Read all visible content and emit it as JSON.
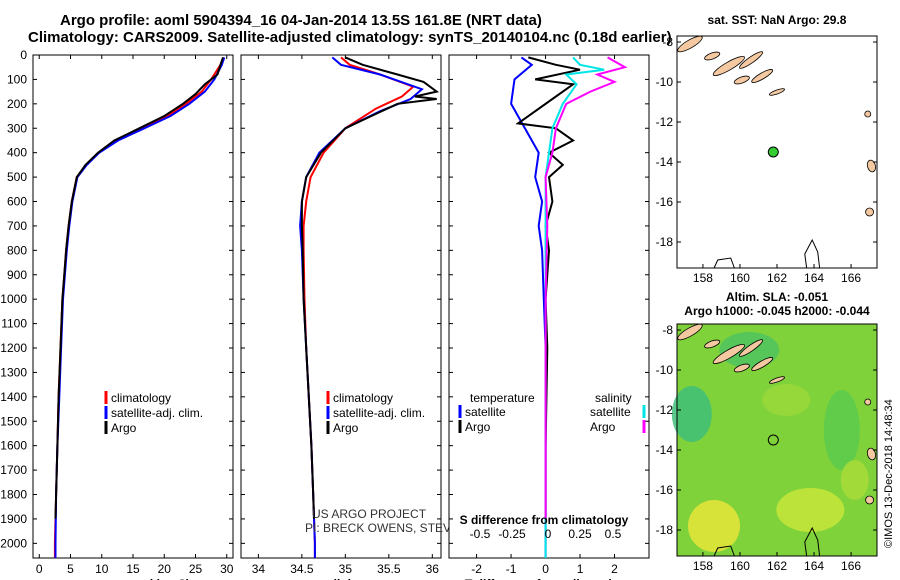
{
  "header": {
    "line1": "Argo profile: aoml 5904394_16 04-Jan-2014 13.5S 161.8E (NRT data)",
    "line2": "Climatology: CARS2009. Satellite-adjusted climatology: synTS_20140104.nc (0.18d earlier)"
  },
  "colors": {
    "climatology": "#ff0000",
    "satellite": "#0000ff",
    "argo": "#000000",
    "sat_salinity": "#00e5e5",
    "argo_salinity": "#ff00ff",
    "map_land": "#f4c8a0",
    "dot": "#33cc33"
  },
  "chart_data": [
    {
      "type": "line",
      "name": "temperature-profile",
      "xlabel": "temperature (deg C)",
      "ylabel": "depth",
      "xlim": [
        -1,
        31
      ],
      "ylim": [
        2060,
        0
      ],
      "xticks": [
        0,
        5,
        10,
        15,
        20,
        25,
        30
      ],
      "yticks": [
        0,
        100,
        200,
        300,
        400,
        500,
        600,
        700,
        800,
        900,
        1000,
        1100,
        1200,
        1300,
        1400,
        1500,
        1600,
        1700,
        1800,
        1900,
        2000
      ],
      "series": [
        {
          "name": "climatology",
          "color": "#ff0000",
          "points": [
            [
              29.5,
              10
            ],
            [
              29.0,
              40
            ],
            [
              27.5,
              100
            ],
            [
              26.0,
              150
            ],
            [
              23.5,
              200
            ],
            [
              20.5,
              250
            ],
            [
              16.5,
              300
            ],
            [
              12.5,
              350
            ],
            [
              9.5,
              400
            ],
            [
              7.5,
              450
            ],
            [
              6.0,
              500
            ],
            [
              5.2,
              600
            ],
            [
              4.7,
              700
            ],
            [
              4.3,
              800
            ],
            [
              4.0,
              900
            ],
            [
              3.7,
              1000
            ],
            [
              3.4,
              1200
            ],
            [
              3.1,
              1400
            ],
            [
              2.9,
              1600
            ],
            [
              2.7,
              1800
            ],
            [
              2.5,
              2000
            ],
            [
              2.5,
              2060
            ]
          ]
        },
        {
          "name": "satellite-adj. clim.",
          "color": "#0000ff",
          "points": [
            [
              29.6,
              10
            ],
            [
              29.2,
              40
            ],
            [
              28.0,
              100
            ],
            [
              26.5,
              150
            ],
            [
              24.0,
              200
            ],
            [
              21.0,
              250
            ],
            [
              16.8,
              300
            ],
            [
              12.6,
              350
            ],
            [
              9.6,
              400
            ],
            [
              7.6,
              450
            ],
            [
              6.1,
              500
            ],
            [
              5.3,
              600
            ],
            [
              4.8,
              700
            ],
            [
              4.4,
              800
            ],
            [
              4.1,
              900
            ],
            [
              3.8,
              1000
            ],
            [
              3.5,
              1200
            ],
            [
              3.2,
              1400
            ],
            [
              2.9,
              1600
            ],
            [
              2.7,
              1800
            ],
            [
              2.6,
              2000
            ],
            [
              2.6,
              2060
            ]
          ]
        },
        {
          "name": "Argo",
          "color": "#000000",
          "points": [
            [
              29.4,
              10
            ],
            [
              29.0,
              40
            ],
            [
              28.5,
              80
            ],
            [
              26.5,
              120
            ],
            [
              25.0,
              160
            ],
            [
              23.0,
              200
            ],
            [
              20.0,
              250
            ],
            [
              16.0,
              300
            ],
            [
              12.0,
              350
            ],
            [
              9.4,
              400
            ],
            [
              7.4,
              450
            ],
            [
              6.0,
              500
            ],
            [
              5.2,
              600
            ],
            [
              4.7,
              700
            ],
            [
              4.3,
              800
            ],
            [
              4.0,
              900
            ],
            [
              3.7,
              1000
            ],
            [
              3.4,
              1200
            ],
            [
              3.1,
              1400
            ],
            [
              2.9,
              1600
            ],
            [
              2.7,
              1800
            ],
            [
              2.6,
              1900
            ]
          ]
        }
      ],
      "legend": [
        "climatology",
        "satellite-adj. clim.",
        "Argo"
      ]
    },
    {
      "type": "line",
      "name": "salinity-profile",
      "xlabel": "salinity",
      "xlim": [
        33.8,
        36.1
      ],
      "ylim": [
        2060,
        0
      ],
      "xticks": [
        34,
        34.5,
        35,
        35.5,
        36
      ],
      "series": [
        {
          "name": "climatology",
          "color": "#ff0000",
          "points": [
            [
              34.95,
              10
            ],
            [
              35.05,
              40
            ],
            [
              35.4,
              80
            ],
            [
              35.78,
              130
            ],
            [
              35.65,
              170
            ],
            [
              35.35,
              220
            ],
            [
              35.0,
              300
            ],
            [
              34.75,
              400
            ],
            [
              34.6,
              500
            ],
            [
              34.55,
              600
            ],
            [
              34.52,
              700
            ],
            [
              34.52,
              800
            ],
            [
              34.53,
              1000
            ],
            [
              34.55,
              1200
            ],
            [
              34.58,
              1400
            ],
            [
              34.61,
              1600
            ],
            [
              34.63,
              1800
            ],
            [
              34.65,
              2000
            ],
            [
              34.65,
              2060
            ]
          ]
        },
        {
          "name": "satellite-adj. clim.",
          "color": "#0000ff",
          "points": [
            [
              34.85,
              10
            ],
            [
              34.95,
              40
            ],
            [
              35.4,
              80
            ],
            [
              35.88,
              140
            ],
            [
              35.75,
              180
            ],
            [
              35.4,
              230
            ],
            [
              35.0,
              300
            ],
            [
              34.7,
              400
            ],
            [
              34.55,
              500
            ],
            [
              34.5,
              600
            ],
            [
              34.48,
              700
            ],
            [
              34.5,
              800
            ],
            [
              34.52,
              1000
            ],
            [
              34.55,
              1200
            ],
            [
              34.58,
              1400
            ],
            [
              34.61,
              1600
            ],
            [
              34.63,
              1800
            ],
            [
              34.65,
              2000
            ],
            [
              34.65,
              2060
            ]
          ]
        },
        {
          "name": "Argo",
          "color": "#000000",
          "points": [
            [
              35.0,
              10
            ],
            [
              35.2,
              40
            ],
            [
              35.6,
              80
            ],
            [
              35.9,
              110
            ],
            [
              36.05,
              150
            ],
            [
              35.8,
              170
            ],
            [
              36.05,
              180
            ],
            [
              35.6,
              200
            ],
            [
              35.3,
              250
            ],
            [
              35.0,
              300
            ],
            [
              34.72,
              400
            ],
            [
              34.55,
              500
            ],
            [
              34.5,
              600
            ],
            [
              34.5,
              700
            ],
            [
              34.51,
              800
            ],
            [
              34.52,
              1000
            ],
            [
              34.55,
              1200
            ],
            [
              34.58,
              1400
            ],
            [
              34.61,
              1600
            ],
            [
              34.63,
              1800
            ],
            [
              34.64,
              1900
            ]
          ]
        }
      ],
      "legend": [
        "climatology",
        "satellite-adj. clim.",
        "Argo"
      ]
    },
    {
      "type": "line",
      "name": "difference-profile",
      "xlabel": "T difference from climatology",
      "xlabel_top": "S difference from climatology",
      "xlim": [
        -2.8,
        3.0
      ],
      "ylim": [
        2060,
        0
      ],
      "xticks": [
        -2,
        -1,
        0,
        1,
        2
      ],
      "sticks": [
        "-0.5",
        "-0.25",
        "0",
        "0.25",
        "0.5"
      ],
      "series": [
        {
          "name": "temperature satellite",
          "color": "#0000ff",
          "points": [
            [
              -0.7,
              10
            ],
            [
              -0.4,
              40
            ],
            [
              -0.9,
              100
            ],
            [
              -1.0,
              200
            ],
            [
              -0.6,
              300
            ],
            [
              -0.2,
              400
            ],
            [
              -0.3,
              500
            ],
            [
              -0.1,
              600
            ],
            [
              -0.2,
              700
            ],
            [
              -0.1,
              800
            ],
            [
              -0.05,
              1000
            ],
            [
              0,
              1200
            ],
            [
              0,
              1600
            ],
            [
              0,
              2060
            ]
          ]
        },
        {
          "name": "temperature Argo",
          "color": "#000000",
          "points": [
            [
              -0.5,
              10
            ],
            [
              0.3,
              40
            ],
            [
              1.0,
              60
            ],
            [
              -0.3,
              100
            ],
            [
              0.8,
              120
            ],
            [
              0.2,
              180
            ],
            [
              -0.8,
              280
            ],
            [
              0.3,
              300
            ],
            [
              0.8,
              350
            ],
            [
              0.1,
              400
            ],
            [
              0.5,
              450
            ],
            [
              0.1,
              500
            ],
            [
              0.2,
              600
            ],
            [
              0.0,
              700
            ],
            [
              0.1,
              800
            ],
            [
              0.0,
              1000
            ],
            [
              0.05,
              1200
            ],
            [
              0.0,
              1600
            ],
            [
              0.0,
              1900
            ]
          ]
        },
        {
          "name": "salinity satellite",
          "color": "#00e5e5",
          "points": [
            [
              0.8,
              10
            ],
            [
              1.0,
              40
            ],
            [
              1.7,
              60
            ],
            [
              0.6,
              80
            ],
            [
              0.9,
              120
            ],
            [
              0.5,
              200
            ],
            [
              0.2,
              300
            ],
            [
              0.1,
              400
            ],
            [
              0.0,
              500
            ],
            [
              0.0,
              700
            ],
            [
              0.0,
              1000
            ],
            [
              0.0,
              2060
            ]
          ]
        },
        {
          "name": "salinity Argo",
          "color": "#ff00ff",
          "points": [
            [
              1.8,
              10
            ],
            [
              2.3,
              50
            ],
            [
              1.5,
              80
            ],
            [
              2.0,
              110
            ],
            [
              1.3,
              150
            ],
            [
              0.6,
              200
            ],
            [
              0.3,
              300
            ],
            [
              0.2,
              400
            ],
            [
              0.0,
              500
            ],
            [
              0.05,
              700
            ],
            [
              0.0,
              1000
            ],
            [
              0.0,
              1900
            ]
          ]
        }
      ],
      "legend_temperature": {
        "title": "temperature",
        "items": [
          "satellite",
          "Argo"
        ]
      },
      "legend_salinity": {
        "title": "salinity",
        "items": [
          "satellite",
          "Argo"
        ]
      }
    },
    {
      "type": "map",
      "name": "sst-map",
      "title": "sat. SST: NaN Argo: 29.8",
      "xlim": [
        156.6,
        167.4
      ],
      "ylim": [
        -19.3,
        -7.7
      ],
      "xticks": [
        158,
        160,
        162,
        164,
        166
      ],
      "yticks": [
        -8,
        -10,
        -12,
        -14,
        -16,
        -18
      ],
      "float_lon": 161.8,
      "float_lat": -13.5
    },
    {
      "type": "map",
      "name": "sla-map",
      "title1": "Altim. SLA: -0.051",
      "title2": "Argo h1000: -0.045 h2000: -0.044",
      "xlim": [
        156.6,
        167.4
      ],
      "ylim": [
        -19.3,
        -7.7
      ],
      "xticks": [
        158,
        160,
        162,
        164,
        166
      ],
      "yticks": [
        -8,
        -10,
        -12,
        -14,
        -16,
        -18
      ],
      "float_lon": 161.8,
      "float_lat": -13.5
    }
  ],
  "annotations": {
    "project": "US ARGO PROJECT",
    "pi": "PI: BRECK OWENS, STEVE JAYNE, P.E. ROBBINS",
    "credit": "©IMOS 13-Dec-2018 14:48:34"
  }
}
